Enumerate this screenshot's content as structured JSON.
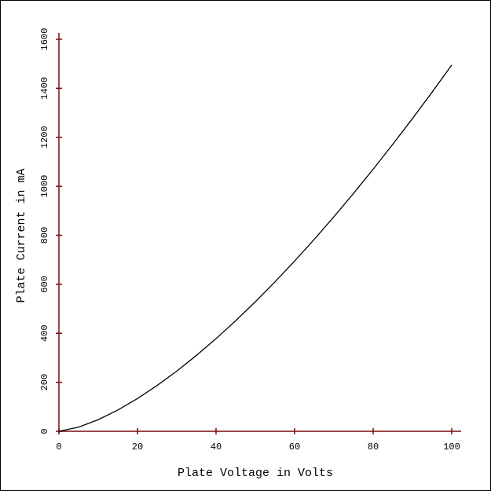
{
  "chart_data": {
    "type": "line",
    "x_label": "Plate Voltage in Volts",
    "y_label": "Plate Current in mA",
    "x": [
      0,
      5,
      10,
      15,
      20,
      25,
      30,
      35,
      40,
      45,
      50,
      55,
      60,
      65,
      70,
      75,
      80,
      85,
      90,
      95,
      100
    ],
    "series": [
      {
        "color": "#000000",
        "values": [
          0,
          16.7,
          47.3,
          86.8,
          133.7,
          186.9,
          245.6,
          309.6,
          378.2,
          451.3,
          528.6,
          609.8,
          694.8,
          783.4,
          875.6,
          971.0,
          1069.7,
          1171.6,
          1276.4,
          1384.2,
          1495
        ]
      }
    ],
    "xlim": [
      0,
      100
    ],
    "xticks": [
      0,
      20,
      40,
      60,
      80,
      100
    ],
    "ylim": [
      0,
      1600
    ],
    "yticks": [
      0,
      200,
      400,
      600,
      800,
      1000,
      1200,
      1400,
      1600
    ],
    "axis_color": "#7a0a0a"
  }
}
